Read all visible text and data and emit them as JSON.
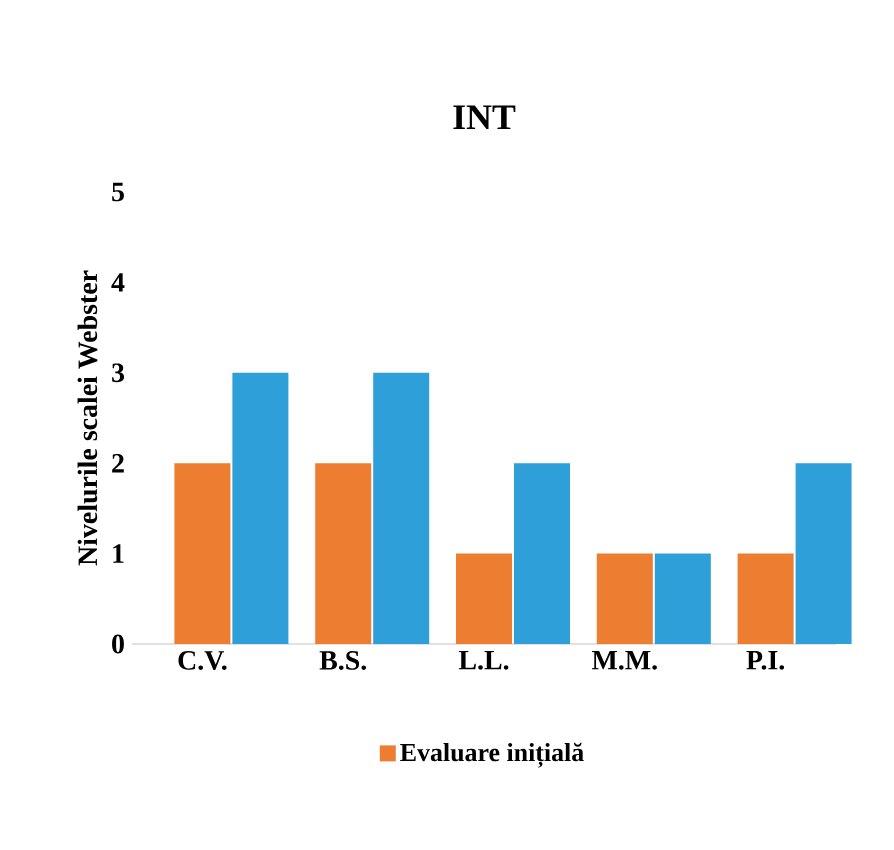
{
  "chart_data": {
    "type": "bar",
    "title": "INT",
    "ylabel": "Nivelurile scalei Webster",
    "categories": [
      "C.V.",
      "B.S.",
      "L.L.",
      "M.M.",
      "P.I."
    ],
    "series": [
      {
        "name": "Evaluare inițială",
        "color": "#ed7d31",
        "values": [
          2,
          2,
          1,
          1,
          1
        ]
      },
      {
        "color": "#2e9fd8",
        "values": [
          3,
          3,
          2,
          1,
          2
        ]
      }
    ],
    "ylim": [
      0,
      5
    ],
    "yticks": [
      0,
      1,
      2,
      3,
      4,
      5
    ],
    "grid": false,
    "legend": "bottom"
  }
}
